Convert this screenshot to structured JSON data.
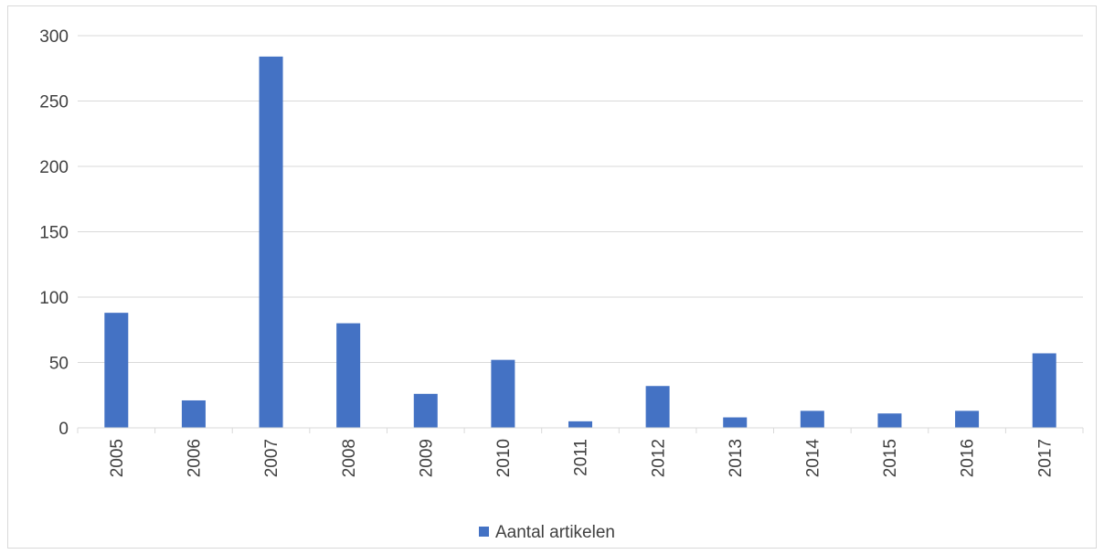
{
  "chart_data": {
    "type": "bar",
    "title": "",
    "xlabel": "",
    "ylabel": "",
    "categories": [
      "2005",
      "2006",
      "2007",
      "2008",
      "2009",
      "2010",
      "2011",
      "2012",
      "2013",
      "2014",
      "2015",
      "2016",
      "2017"
    ],
    "series": [
      {
        "name": "Aantal artikelen",
        "values": [
          88,
          21,
          284,
          80,
          26,
          52,
          5,
          32,
          8,
          13,
          11,
          13,
          57
        ],
        "color": "#4472c4"
      }
    ],
    "ylim": [
      0,
      300
    ],
    "yticks": [
      0,
      50,
      100,
      150,
      200,
      250,
      300
    ],
    "grid": true,
    "legend_position": "bottom",
    "x_tick_rotation": "vertical",
    "gridline_color": "#d9d9d9",
    "axis_text_color": "#404040"
  }
}
